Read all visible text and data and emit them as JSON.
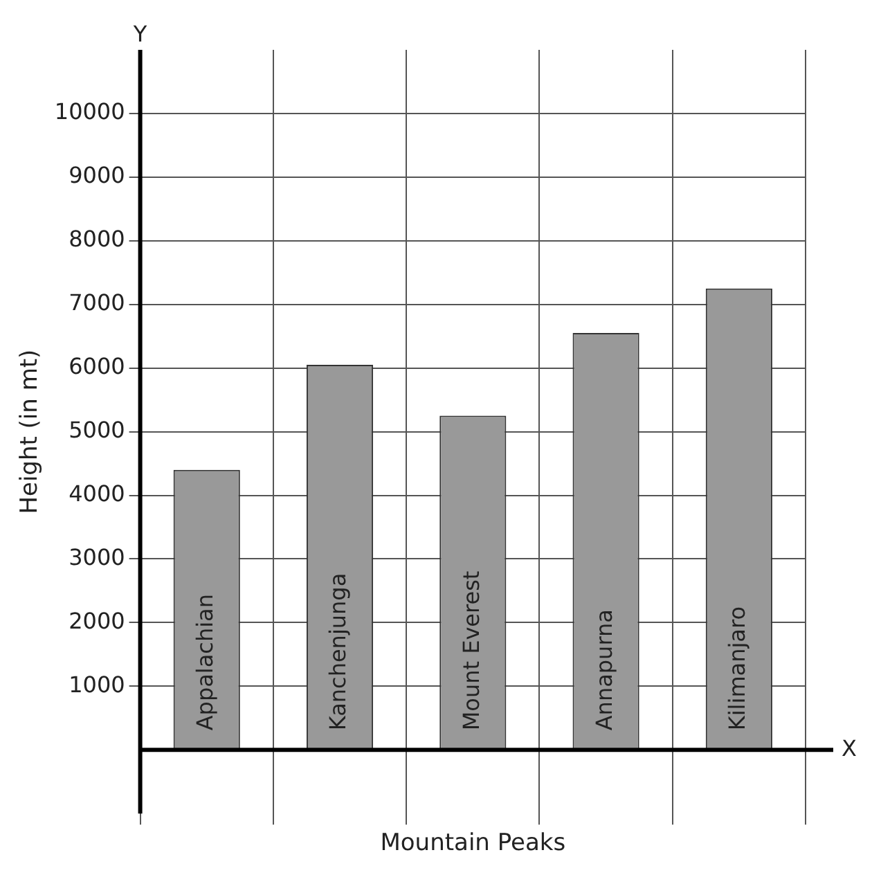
{
  "chart_data": {
    "type": "bar",
    "xlabel": "Mountain Peaks",
    "ylabel": "Height (in mt)",
    "categories": [
      "Appalachian",
      "Kanchenjunga",
      "Mount Everest",
      "Annapurna",
      "Kilimanjaro"
    ],
    "values": [
      4400,
      6050,
      5250,
      6550,
      7250
    ],
    "color": "#999999",
    "ylim": [
      -1000,
      11000
    ],
    "yticks": [
      1000,
      2000,
      3000,
      4000,
      5000,
      6000,
      7000,
      8000,
      9000,
      10000
    ],
    "grid": true,
    "annotations": [
      "Y",
      "X"
    ]
  }
}
